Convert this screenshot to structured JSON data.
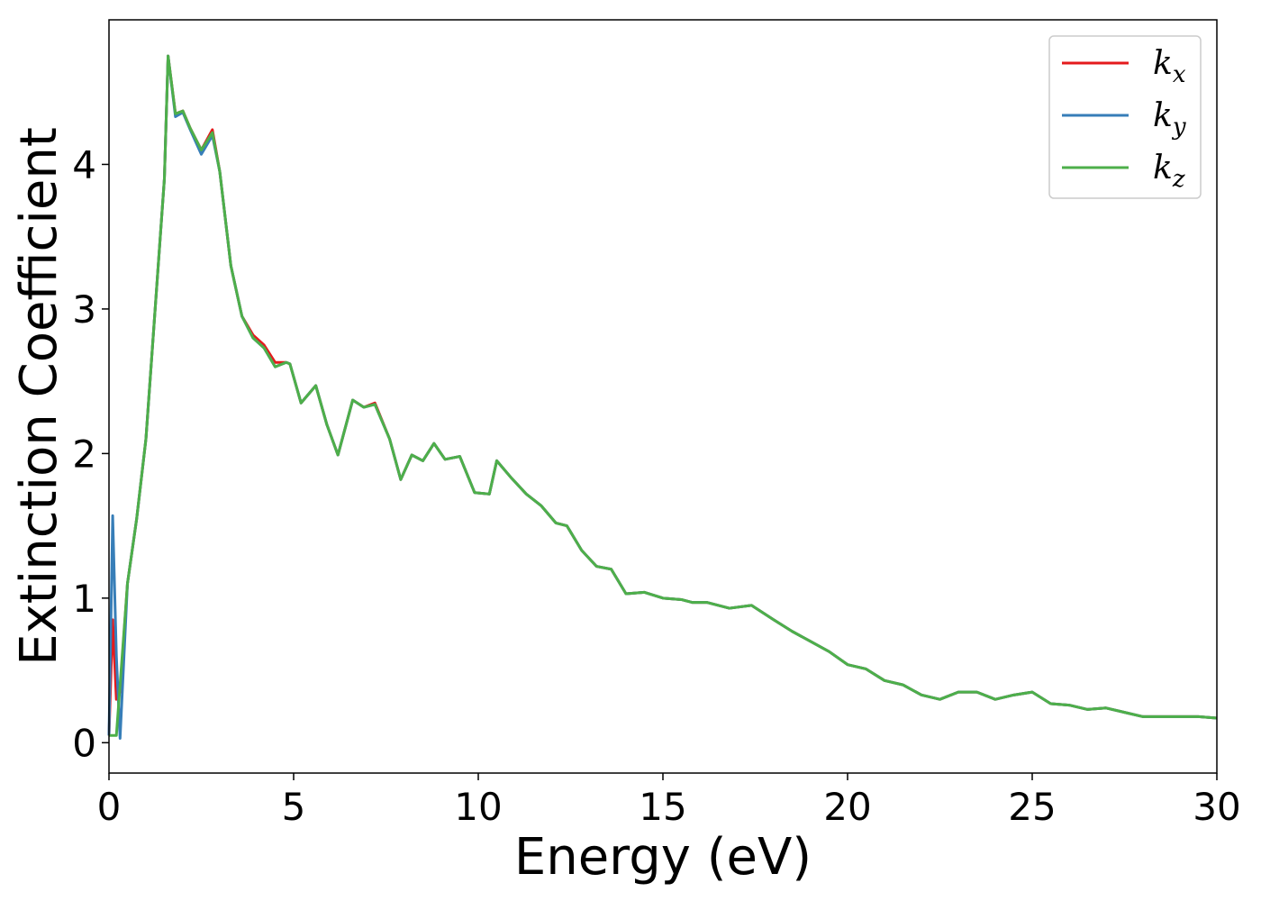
{
  "chart_data": {
    "type": "line",
    "xlabel": "Energy (eV)",
    "ylabel": "Extinction Coefficient",
    "x": [
      0,
      0.1,
      0.2,
      0.3,
      0.5,
      0.75,
      1.0,
      1.25,
      1.5,
      1.6,
      1.8,
      2.0,
      2.2,
      2.5,
      2.8,
      3.0,
      3.3,
      3.6,
      3.9,
      4.2,
      4.5,
      4.8,
      4.9,
      5.2,
      5.6,
      5.9,
      6.2,
      6.6,
      6.9,
      7.2,
      7.6,
      7.9,
      8.2,
      8.5,
      8.8,
      9.1,
      9.5,
      9.9,
      10.3,
      10.5,
      10.9,
      11.3,
      11.7,
      12.1,
      12.4,
      12.8,
      13.2,
      13.6,
      14.0,
      14.5,
      15.0,
      15.5,
      15.8,
      16.2,
      16.8,
      17.4,
      18.0,
      18.5,
      19.0,
      19.5,
      20.0,
      20.5,
      21.0,
      21.5,
      22.0,
      22.5,
      23.0,
      23.5,
      24.0,
      24.5,
      25.0,
      25.5,
      26.0,
      26.5,
      27.0,
      27.5,
      28.0,
      28.5,
      29.0,
      29.5,
      30.0
    ],
    "series": [
      {
        "name": "kx",
        "color": "#e41a1c",
        "values": [
          0.05,
          0.85,
          0.3,
          0.35,
          1.1,
          1.55,
          2.1,
          3.0,
          3.9,
          4.75,
          4.35,
          4.37,
          4.25,
          4.1,
          4.24,
          3.95,
          3.3,
          2.95,
          2.82,
          2.75,
          2.63,
          2.63,
          2.62,
          2.35,
          2.47,
          2.2,
          1.99,
          2.37,
          2.32,
          2.35,
          2.1,
          1.82,
          1.99,
          1.95,
          2.07,
          1.96,
          1.98,
          1.73,
          1.72,
          1.95,
          1.83,
          1.72,
          1.64,
          1.52,
          1.5,
          1.33,
          1.22,
          1.2,
          1.03,
          1.04,
          1.0,
          0.99,
          0.97,
          0.97,
          0.93,
          0.95,
          0.85,
          0.77,
          0.7,
          0.63,
          0.54,
          0.51,
          0.43,
          0.4,
          0.33,
          0.3,
          0.35,
          0.35,
          0.3,
          0.33,
          0.35,
          0.27,
          0.26,
          0.23,
          0.24,
          0.21,
          0.18,
          0.18,
          0.18,
          0.18,
          0.17
        ]
      },
      {
        "name": "ky",
        "color": "#377eb8",
        "values": [
          0.05,
          1.57,
          0.6,
          0.03,
          1.1,
          1.55,
          2.1,
          3.0,
          3.9,
          4.75,
          4.33,
          4.36,
          4.24,
          4.07,
          4.2,
          3.95,
          3.3,
          2.95,
          2.8,
          2.73,
          2.6,
          2.63,
          2.62,
          2.35,
          2.47,
          2.2,
          1.99,
          2.37,
          2.32,
          2.34,
          2.1,
          1.82,
          1.99,
          1.95,
          2.07,
          1.96,
          1.98,
          1.73,
          1.72,
          1.95,
          1.83,
          1.72,
          1.64,
          1.52,
          1.5,
          1.33,
          1.22,
          1.2,
          1.03,
          1.04,
          1.0,
          0.99,
          0.97,
          0.97,
          0.93,
          0.95,
          0.85,
          0.77,
          0.7,
          0.63,
          0.54,
          0.51,
          0.43,
          0.4,
          0.33,
          0.3,
          0.35,
          0.35,
          0.3,
          0.33,
          0.35,
          0.27,
          0.26,
          0.23,
          0.24,
          0.21,
          0.18,
          0.18,
          0.18,
          0.18,
          0.17
        ]
      },
      {
        "name": "kz",
        "color": "#4daf4a",
        "values": [
          0.05,
          0.05,
          0.05,
          0.4,
          1.1,
          1.55,
          2.1,
          3.0,
          3.9,
          4.75,
          4.35,
          4.37,
          4.25,
          4.1,
          4.22,
          3.95,
          3.3,
          2.95,
          2.8,
          2.73,
          2.6,
          2.63,
          2.62,
          2.35,
          2.47,
          2.2,
          1.99,
          2.37,
          2.32,
          2.34,
          2.1,
          1.82,
          1.99,
          1.95,
          2.07,
          1.96,
          1.98,
          1.73,
          1.72,
          1.95,
          1.83,
          1.72,
          1.64,
          1.52,
          1.5,
          1.33,
          1.22,
          1.2,
          1.03,
          1.04,
          1.0,
          0.99,
          0.97,
          0.97,
          0.93,
          0.95,
          0.85,
          0.77,
          0.7,
          0.63,
          0.54,
          0.51,
          0.43,
          0.4,
          0.33,
          0.3,
          0.35,
          0.35,
          0.3,
          0.33,
          0.35,
          0.27,
          0.26,
          0.23,
          0.24,
          0.21,
          0.18,
          0.18,
          0.18,
          0.18,
          0.17
        ]
      }
    ],
    "xlim": [
      0,
      30
    ],
    "ylim": [
      -0.21,
      5.0
    ],
    "xticks": [
      0,
      5,
      10,
      15,
      20,
      25,
      30
    ],
    "yticks": [
      0,
      1,
      2,
      3,
      4
    ],
    "legend": "upper right"
  }
}
